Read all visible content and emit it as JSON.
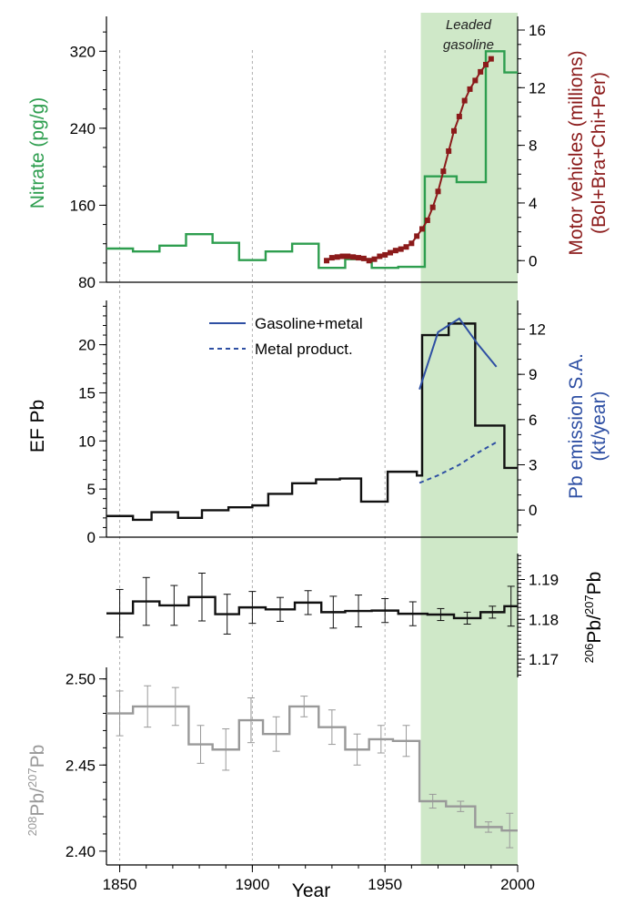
{
  "colors": {
    "nitrate": "#2e9e4f",
    "vehicles": "#8b1a1a",
    "ef": "#111111",
    "pb_emission": "#2e4fa3",
    "ratio206": "#111111",
    "ratio208": "#999999",
    "shade": "#cfe8c8"
  },
  "annotation": {
    "line1": "Leaded",
    "line2": "gasoline",
    "start_year": 1963.5,
    "end_year": 2000
  },
  "x_axis": {
    "label": "Year",
    "range": [
      1845,
      2000
    ],
    "ticks": [
      1850,
      1900,
      1950,
      2000
    ],
    "gridlines": [
      1850,
      1900,
      1950
    ]
  },
  "chart_data": [
    {
      "type": "line",
      "panel": "nitrate",
      "ylabel_left": "Nitrate (pg/g)",
      "ylabel_right_line1": "Motor vehicles (millions)",
      "ylabel_right_line2": "(Bol+Bra+Chi+Per)",
      "ylim_left": [
        80,
        360
      ],
      "yticks_left": [
        80,
        160,
        240,
        320
      ],
      "ylim_right": [
        -1.5,
        17.2
      ],
      "yticks_right": [
        0,
        4,
        8,
        12,
        16
      ],
      "series": [
        {
          "role": "nitrate-step",
          "edges": [
            1845,
            1855,
            1865,
            1875,
            1885,
            1895,
            1905,
            1915,
            1925,
            1935,
            1945,
            1955,
            1965,
            1977,
            1988,
            1995,
            2000
          ],
          "values": [
            115,
            112,
            118,
            130,
            121,
            103,
            112,
            120,
            95,
            104,
            95,
            96,
            190,
            184,
            320,
            298
          ]
        },
        {
          "role": "vehicles",
          "x": [
            1928,
            1930,
            1932,
            1934,
            1936,
            1938,
            1940,
            1942,
            1944,
            1946,
            1948,
            1950,
            1952,
            1954,
            1956,
            1958,
            1960,
            1962,
            1964,
            1966,
            1968,
            1970,
            1972,
            1974,
            1976,
            1978,
            1980,
            1982,
            1984,
            1986,
            1988,
            1990
          ],
          "y": [
            0.0,
            0.2,
            0.25,
            0.3,
            0.3,
            0.25,
            0.2,
            0.15,
            0.0,
            0.1,
            0.3,
            0.4,
            0.55,
            0.7,
            0.8,
            0.95,
            1.2,
            1.7,
            2.2,
            2.8,
            3.7,
            4.8,
            6.2,
            7.6,
            9.0,
            10.0,
            11.1,
            11.9,
            12.5,
            13.1,
            13.6,
            14.0
          ]
        }
      ]
    },
    {
      "type": "line",
      "panel": "ef",
      "ylabel_left": "EF Pb",
      "ylabel_right_line1": "Pb emission S.A.",
      "ylabel_right_line2": "(kt/year)",
      "ylim_left": [
        0,
        24.6
      ],
      "yticks_left": [
        0,
        5,
        10,
        15,
        20
      ],
      "ylim_right": [
        -1.8,
        13.9
      ],
      "yticks_right": [
        0,
        3,
        6,
        9,
        12
      ],
      "legend": [
        "Gasoline+metal",
        "Metal product."
      ],
      "series": [
        {
          "role": "ef-step",
          "edges": [
            1845,
            1855,
            1862,
            1872,
            1881,
            1891,
            1900,
            1906,
            1915,
            1924,
            1933,
            1941,
            1951,
            1962,
            1964,
            1974,
            1984,
            1995,
            2000
          ],
          "values": [
            2.2,
            1.8,
            2.6,
            2.0,
            2.8,
            3.1,
            3.3,
            4.5,
            5.6,
            6.0,
            6.1,
            3.7,
            6.8,
            6.4,
            21.0,
            22.2,
            11.6,
            7.2
          ]
        },
        {
          "role": "gasoline-metal",
          "name": "Gasoline+metal",
          "x": [
            1963,
            1970,
            1978,
            1985,
            1992
          ],
          "y": [
            8.0,
            11.8,
            12.7,
            11.0,
            9.5
          ]
        },
        {
          "role": "metal-product",
          "name": "Metal product.",
          "x": [
            1963,
            1970,
            1978,
            1985,
            1992
          ],
          "y": [
            1.8,
            2.3,
            3.0,
            3.8,
            4.5
          ]
        }
      ]
    },
    {
      "type": "line",
      "panel": "r206",
      "ylabel_right_sup1": "206",
      "ylabel_right_mid": "Pb/",
      "ylabel_right_sup2": "207",
      "ylabel_right_end": "Pb",
      "ylim_right": [
        1.1652,
        1.1972
      ],
      "yticks_right": [
        1.17,
        1.18,
        1.19
      ],
      "series": [
        {
          "role": "r206-step",
          "edges": [
            1845,
            1855,
            1865,
            1876,
            1886,
            1895,
            1905,
            1916,
            1926,
            1935,
            1945,
            1955,
            1966,
            1976,
            1986,
            1995,
            2000
          ],
          "values": [
            1.1815,
            1.1845,
            1.1835,
            1.1856,
            1.1813,
            1.183,
            1.1825,
            1.1842,
            1.1818,
            1.1821,
            1.1822,
            1.1814,
            1.1812,
            1.1803,
            1.1818,
            1.1833
          ],
          "err": [
            0.006,
            0.006,
            0.005,
            0.006,
            0.005,
            0.004,
            0.003,
            0.003,
            0.004,
            0.004,
            0.003,
            0.003,
            0.0015,
            0.0015,
            0.0015,
            0.005
          ]
        }
      ]
    },
    {
      "type": "line",
      "panel": "r208",
      "ylabel_left_sup1": "208",
      "ylabel_left_mid": "Pb/",
      "ylabel_left_sup2": "207",
      "ylabel_left_end": "Pb",
      "ylim_left": [
        2.392,
        2.503
      ],
      "yticks_left": [
        2.4,
        2.45,
        2.5
      ],
      "series": [
        {
          "role": "r208-step",
          "edges": [
            1845,
            1855,
            1866,
            1876,
            1885,
            1895,
            1904,
            1914,
            1925,
            1935,
            1944,
            1953,
            1963,
            1973,
            1984,
            1994,
            2000
          ],
          "values": [
            2.48,
            2.484,
            2.484,
            2.462,
            2.459,
            2.476,
            2.468,
            2.484,
            2.472,
            2.459,
            2.465,
            2.464,
            2.429,
            2.426,
            2.414,
            2.412
          ],
          "err": [
            0.013,
            0.012,
            0.011,
            0.011,
            0.012,
            0.013,
            0.01,
            0.006,
            0.01,
            0.009,
            0.008,
            0.009,
            0.004,
            0.003,
            0.003,
            0.01
          ]
        }
      ]
    }
  ]
}
